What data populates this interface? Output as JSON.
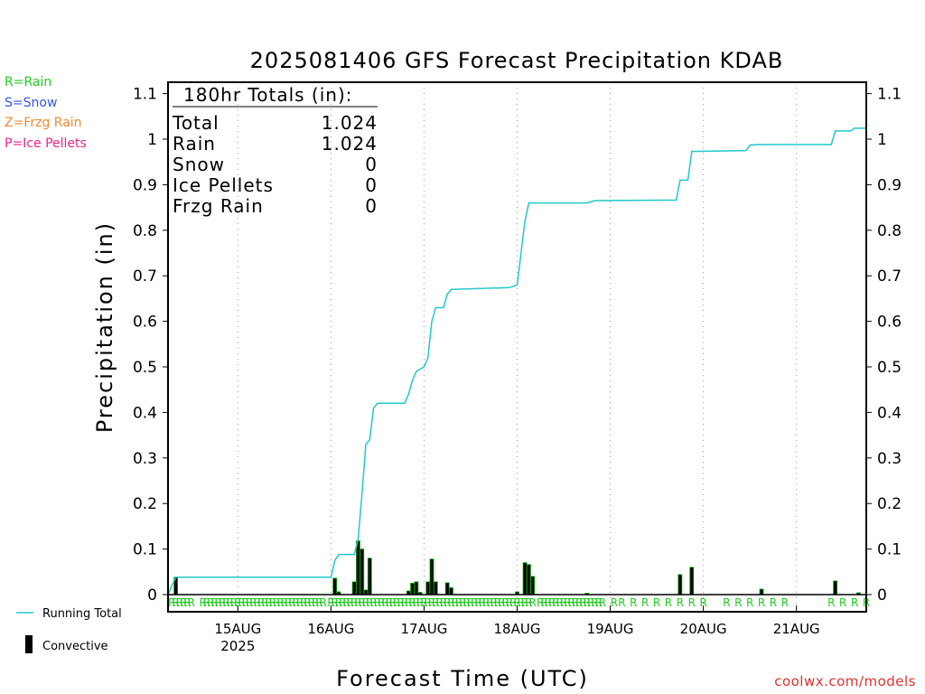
{
  "legend": {
    "rain": "R=Rain",
    "snow": "S=Snow",
    "frzg": "Z=Frzg Rain",
    "ice": "P=Ice Pellets",
    "running_total": "Running Total",
    "convective": "Convective"
  },
  "totals_box": {
    "header": "180hr Totals (in):",
    "rows": [
      {
        "label": "Total",
        "value": "1.024"
      },
      {
        "label": "Rain",
        "value": "1.024"
      },
      {
        "label": "Snow",
        "value": "0"
      },
      {
        "label": "Ice Pellets",
        "value": "0"
      },
      {
        "label": "Frzg Rain",
        "value": "0"
      }
    ]
  },
  "credit": "coolwx.com/models",
  "colors": {
    "running_total": "#22c8c8",
    "bars": "#000000",
    "bar_outline": "#00aa00",
    "precip_type": "#22cc22",
    "rain_legend": "#22cc22",
    "snow_legend": "#3355ee",
    "frzg_legend": "#ee8833",
    "ice_legend": "#ee2288",
    "credit": "#e03030"
  },
  "chart_data": {
    "type": "line",
    "title": "2025081406 GFS Forecast Precipitation KDAB",
    "xlabel": "Forecast Time (UTC)",
    "ylabel": "Precipitation (in)",
    "ylim": [
      0,
      1.12
    ],
    "yticks": [
      0,
      0.1,
      0.2,
      0.3,
      0.4,
      0.5,
      0.6,
      0.7,
      0.8,
      0.9,
      1,
      1.1
    ],
    "xlim_hours": [
      0,
      180
    ],
    "x_units": "hours after 2025-08-14 06Z",
    "xticks": [
      {
        "hour": 18,
        "label": "15AUG",
        "sub": "2025"
      },
      {
        "hour": 42,
        "label": "16AUG",
        "sub": ""
      },
      {
        "hour": 66,
        "label": "17AUG",
        "sub": ""
      },
      {
        "hour": 90,
        "label": "18AUG",
        "sub": ""
      },
      {
        "hour": 114,
        "label": "19AUG",
        "sub": ""
      },
      {
        "hour": 138,
        "label": "20AUG",
        "sub": ""
      },
      {
        "hour": 162,
        "label": "21AUG",
        "sub": ""
      }
    ],
    "grid": "vertical dotted at day boundaries",
    "running_total": [
      [
        0,
        0
      ],
      [
        1,
        0.02
      ],
      [
        2,
        0.038
      ],
      [
        42,
        0.038
      ],
      [
        43,
        0.075
      ],
      [
        44,
        0.088
      ],
      [
        48,
        0.088
      ],
      [
        49,
        0.12
      ],
      [
        50,
        0.22
      ],
      [
        51,
        0.33
      ],
      [
        52,
        0.34
      ],
      [
        53,
        0.41
      ],
      [
        54,
        0.42
      ],
      [
        61,
        0.42
      ],
      [
        62,
        0.44
      ],
      [
        63,
        0.47
      ],
      [
        64,
        0.49
      ],
      [
        65,
        0.495
      ],
      [
        66,
        0.5
      ],
      [
        67,
        0.52
      ],
      [
        68,
        0.6
      ],
      [
        69,
        0.63
      ],
      [
        71,
        0.63
      ],
      [
        72,
        0.66
      ],
      [
        73,
        0.67
      ],
      [
        88,
        0.674
      ],
      [
        90,
        0.68
      ],
      [
        91,
        0.75
      ],
      [
        92,
        0.82
      ],
      [
        93,
        0.86
      ],
      [
        108,
        0.86
      ],
      [
        110,
        0.865
      ],
      [
        128,
        0.866
      ],
      [
        131,
        0.866
      ],
      [
        132,
        0.91
      ],
      [
        134,
        0.91
      ],
      [
        135,
        0.973
      ],
      [
        149,
        0.975
      ],
      [
        150,
        0.987
      ],
      [
        152,
        0.988
      ],
      [
        171,
        0.988
      ],
      [
        172,
        1.018
      ],
      [
        176,
        1.018
      ],
      [
        177,
        1.024
      ],
      [
        180,
        1.024
      ]
    ],
    "convective_bars": [
      [
        2,
        0.038
      ],
      [
        43,
        0.036
      ],
      [
        44,
        0.006
      ],
      [
        48,
        0.028
      ],
      [
        49,
        0.118
      ],
      [
        50,
        0.1
      ],
      [
        51,
        0.01
      ],
      [
        52,
        0.08
      ],
      [
        62,
        0.008
      ],
      [
        63,
        0.025
      ],
      [
        64,
        0.028
      ],
      [
        65,
        0.005
      ],
      [
        67,
        0.028
      ],
      [
        68,
        0.078
      ],
      [
        69,
        0.028
      ],
      [
        72,
        0.026
      ],
      [
        73,
        0.015
      ],
      [
        90,
        0.006
      ],
      [
        92,
        0.07
      ],
      [
        93,
        0.066
      ],
      [
        94,
        0.04
      ],
      [
        108,
        0.003
      ],
      [
        132,
        0.044
      ],
      [
        135,
        0.06
      ],
      [
        153,
        0.012
      ],
      [
        172,
        0.03
      ],
      [
        178,
        0.004
      ]
    ],
    "precip_type_hours": [
      1,
      2,
      3,
      4,
      5,
      6,
      9,
      10,
      11,
      12,
      13,
      14,
      15,
      16,
      17,
      18,
      19,
      20,
      21,
      22,
      23,
      24,
      25,
      26,
      27,
      28,
      29,
      30,
      31,
      32,
      33,
      34,
      35,
      36,
      37,
      38,
      39,
      40,
      42,
      43,
      44,
      45,
      46,
      47,
      48,
      49,
      50,
      51,
      52,
      53,
      54,
      55,
      56,
      57,
      58,
      59,
      60,
      61,
      62,
      63,
      64,
      65,
      66,
      67,
      68,
      69,
      70,
      71,
      72,
      73,
      74,
      75,
      76,
      77,
      78,
      79,
      80,
      81,
      82,
      83,
      84,
      85,
      86,
      87,
      88,
      89,
      90,
      91,
      92,
      93,
      94,
      96,
      97,
      98,
      99,
      100,
      101,
      102,
      103,
      104,
      105,
      106,
      107,
      108,
      109,
      110,
      111,
      112,
      115,
      117,
      120,
      123,
      126,
      129,
      132,
      135,
      138,
      144,
      147,
      150,
      153,
      156,
      159,
      171,
      174,
      177,
      180
    ],
    "precip_type_letter": "R"
  }
}
